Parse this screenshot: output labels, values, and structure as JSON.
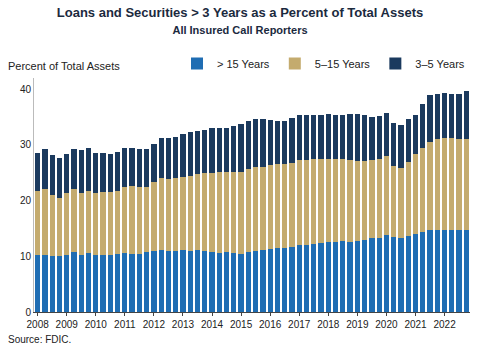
{
  "chart_data": {
    "type": "bar",
    "stacked": true,
    "title": "Loans and Securities > 3 Years as a Percent of Total Assets",
    "subtitle": "All Insured Call Reporters",
    "ylabel": "Percent of Total Assets",
    "source": "Source: FDIC.",
    "legend": "top",
    "grid": false,
    "categories": [
      "2008",
      null,
      null,
      null,
      "2009",
      null,
      null,
      null,
      "2010",
      null,
      null,
      null,
      "2011",
      null,
      null,
      null,
      "2012",
      null,
      null,
      null,
      "2013",
      null,
      null,
      null,
      "2014",
      null,
      null,
      null,
      "2015",
      null,
      null,
      null,
      "2016",
      null,
      null,
      null,
      "2017",
      null,
      null,
      null,
      "2018",
      null,
      null,
      null,
      "2019",
      null,
      null,
      null,
      "2020",
      null,
      null,
      null,
      "2021",
      null,
      null,
      null,
      "2022",
      null,
      null,
      null
    ],
    "series": [
      {
        "name": "> 15 Years",
        "color": "#1f6db3",
        "values": [
          10.2,
          10.3,
          10.0,
          10.1,
          10.3,
          10.8,
          10.3,
          10.6,
          10.2,
          10.2,
          10.3,
          10.5,
          10.6,
          10.5,
          10.4,
          10.7,
          11.0,
          11.2,
          11.0,
          11.0,
          11.1,
          11.0,
          11.1,
          10.9,
          10.8,
          10.6,
          10.7,
          10.6,
          10.5,
          10.8,
          11.0,
          11.2,
          11.3,
          11.4,
          11.5,
          11.6,
          12.0,
          12.1,
          12.2,
          12.4,
          12.5,
          12.6,
          12.7,
          12.6,
          12.8,
          13.0,
          13.2,
          13.2,
          13.8,
          13.4,
          13.3,
          13.6,
          14.0,
          14.4,
          14.7,
          14.8,
          14.8,
          14.7,
          14.7,
          14.8
        ]
      },
      {
        "name": "5–15 Years",
        "color": "#c4ab6e",
        "values": [
          11.6,
          11.8,
          11.0,
          10.4,
          11.0,
          11.2,
          11.1,
          11.1,
          11.1,
          11.4,
          11.3,
          11.3,
          11.9,
          12.1,
          12.1,
          11.7,
          12.3,
          12.8,
          12.8,
          13.0,
          13.2,
          13.5,
          13.7,
          14.0,
          14.2,
          14.5,
          14.5,
          14.5,
          14.7,
          14.9,
          15.0,
          14.9,
          15.0,
          15.1,
          15.1,
          15.2,
          15.2,
          15.2,
          15.2,
          15.0,
          15.0,
          14.9,
          14.7,
          14.7,
          14.3,
          14.1,
          14.0,
          14.2,
          14.2,
          12.8,
          12.6,
          13.3,
          14.4,
          15.1,
          15.9,
          16.2,
          16.4,
          16.6,
          16.4,
          16.2
        ]
      },
      {
        "name": "3–5 Years",
        "color": "#1b3a5e",
        "values": [
          6.8,
          7.1,
          7.2,
          7.1,
          7.0,
          7.3,
          7.6,
          7.7,
          7.2,
          6.9,
          6.7,
          7.0,
          6.9,
          6.8,
          6.8,
          6.8,
          6.9,
          7.3,
          7.5,
          7.5,
          7.7,
          7.8,
          7.7,
          7.7,
          8.0,
          8.0,
          7.9,
          8.2,
          8.5,
          8.6,
          8.6,
          8.6,
          8.2,
          7.7,
          7.7,
          8.0,
          8.2,
          8.0,
          7.9,
          8.0,
          8.0,
          7.8,
          8.0,
          8.2,
          8.4,
          8.2,
          7.8,
          7.8,
          7.7,
          7.8,
          7.6,
          7.8,
          7.0,
          7.8,
          8.4,
          8.2,
          8.1,
          7.8,
          8.1,
          8.7
        ]
      }
    ],
    "ylim": [
      0,
      42
    ],
    "yticks": [
      0,
      10,
      20,
      30,
      40
    ]
  }
}
